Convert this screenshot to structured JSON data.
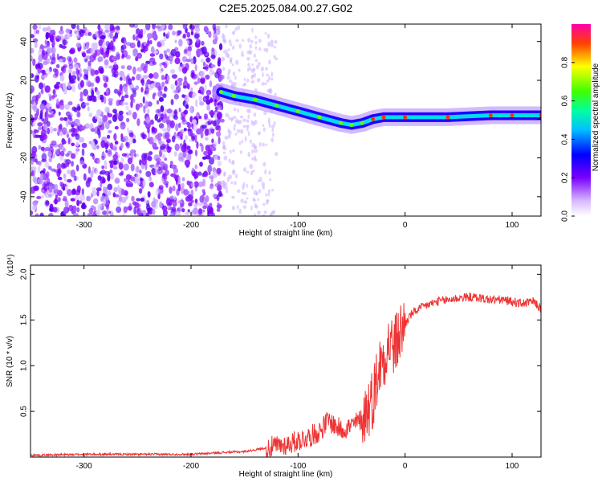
{
  "title": "C2E5.2025.084.00.27.G02",
  "colors": {
    "spectrogram_low": "#7a00ff",
    "signal_line": "#ee3333",
    "axis": "#000000"
  },
  "chart_data": [
    {
      "type": "heatmap",
      "xlabel": "Height of straight line (km)",
      "ylabel": "Frequency (Hz)",
      "xlim": [
        -350,
        127
      ],
      "ylim": [
        -50,
        49
      ],
      "xticks": [
        "-300",
        "-200",
        "-100",
        "0",
        "100"
      ],
      "yticks": [
        "-40",
        "-20",
        "0",
        "20",
        "40"
      ],
      "colorbar": {
        "label": "Normalized spectral amplitude",
        "ticks": [
          "0.0",
          "0.2",
          "0.4",
          "0.6",
          "0.8"
        ],
        "range": [
          0,
          1
        ]
      },
      "noise_region_x": [
        -350,
        -170
      ],
      "sparse_region_x": [
        -170,
        -120
      ],
      "tone_track": [
        {
          "x": -172,
          "y": 14
        },
        {
          "x": -160,
          "y": 12
        },
        {
          "x": -140,
          "y": 10
        },
        {
          "x": -120,
          "y": 7
        },
        {
          "x": -100,
          "y": 4
        },
        {
          "x": -80,
          "y": 1
        },
        {
          "x": -60,
          "y": -2
        },
        {
          "x": -50,
          "y": -3
        },
        {
          "x": -40,
          "y": -2
        },
        {
          "x": -30,
          "y": 0
        },
        {
          "x": -20,
          "y": 1
        },
        {
          "x": 0,
          "y": 1
        },
        {
          "x": 40,
          "y": 1
        },
        {
          "x": 80,
          "y": 2
        },
        {
          "x": 100,
          "y": 2
        },
        {
          "x": 127,
          "y": 2
        }
      ]
    },
    {
      "type": "line",
      "xlabel": "Height of straight line (km)",
      "ylabel": "SNR (10 * v/v)",
      "y_multiplier": "(x10⁴)",
      "xlim": [
        -350,
        127
      ],
      "ylim": [
        0,
        2.1
      ],
      "xticks": [
        "-300",
        "-200",
        "-100",
        "0",
        "100"
      ],
      "yticks": [
        "0.5",
        "1.0",
        "1.5",
        "2.0"
      ],
      "series": [
        {
          "color": "#ee3333",
          "points": [
            [
              -350,
              0.02
            ],
            [
              -300,
              0.03
            ],
            [
              -250,
              0.03
            ],
            [
              -200,
              0.03
            ],
            [
              -170,
              0.05
            ],
            [
              -150,
              0.06
            ],
            [
              -130,
              0.1
            ],
            [
              -110,
              0.14
            ],
            [
              -100,
              0.18
            ],
            [
              -90,
              0.22
            ],
            [
              -80,
              0.28
            ],
            [
              -72,
              0.4
            ],
            [
              -60,
              0.3
            ],
            [
              -50,
              0.34
            ],
            [
              -40,
              0.42
            ],
            [
              -30,
              0.65
            ],
            [
              -25,
              0.95
            ],
            [
              -20,
              1.1
            ],
            [
              -15,
              1.25
            ],
            [
              -10,
              1.2
            ],
            [
              -5,
              1.35
            ],
            [
              0,
              1.45
            ],
            [
              5,
              1.55
            ],
            [
              10,
              1.6
            ],
            [
              20,
              1.66
            ],
            [
              30,
              1.7
            ],
            [
              40,
              1.72
            ],
            [
              50,
              1.74
            ],
            [
              60,
              1.75
            ],
            [
              70,
              1.74
            ],
            [
              80,
              1.72
            ],
            [
              90,
              1.72
            ],
            [
              100,
              1.7
            ],
            [
              110,
              1.68
            ],
            [
              120,
              1.7
            ],
            [
              127,
              1.62
            ]
          ]
        }
      ]
    }
  ]
}
